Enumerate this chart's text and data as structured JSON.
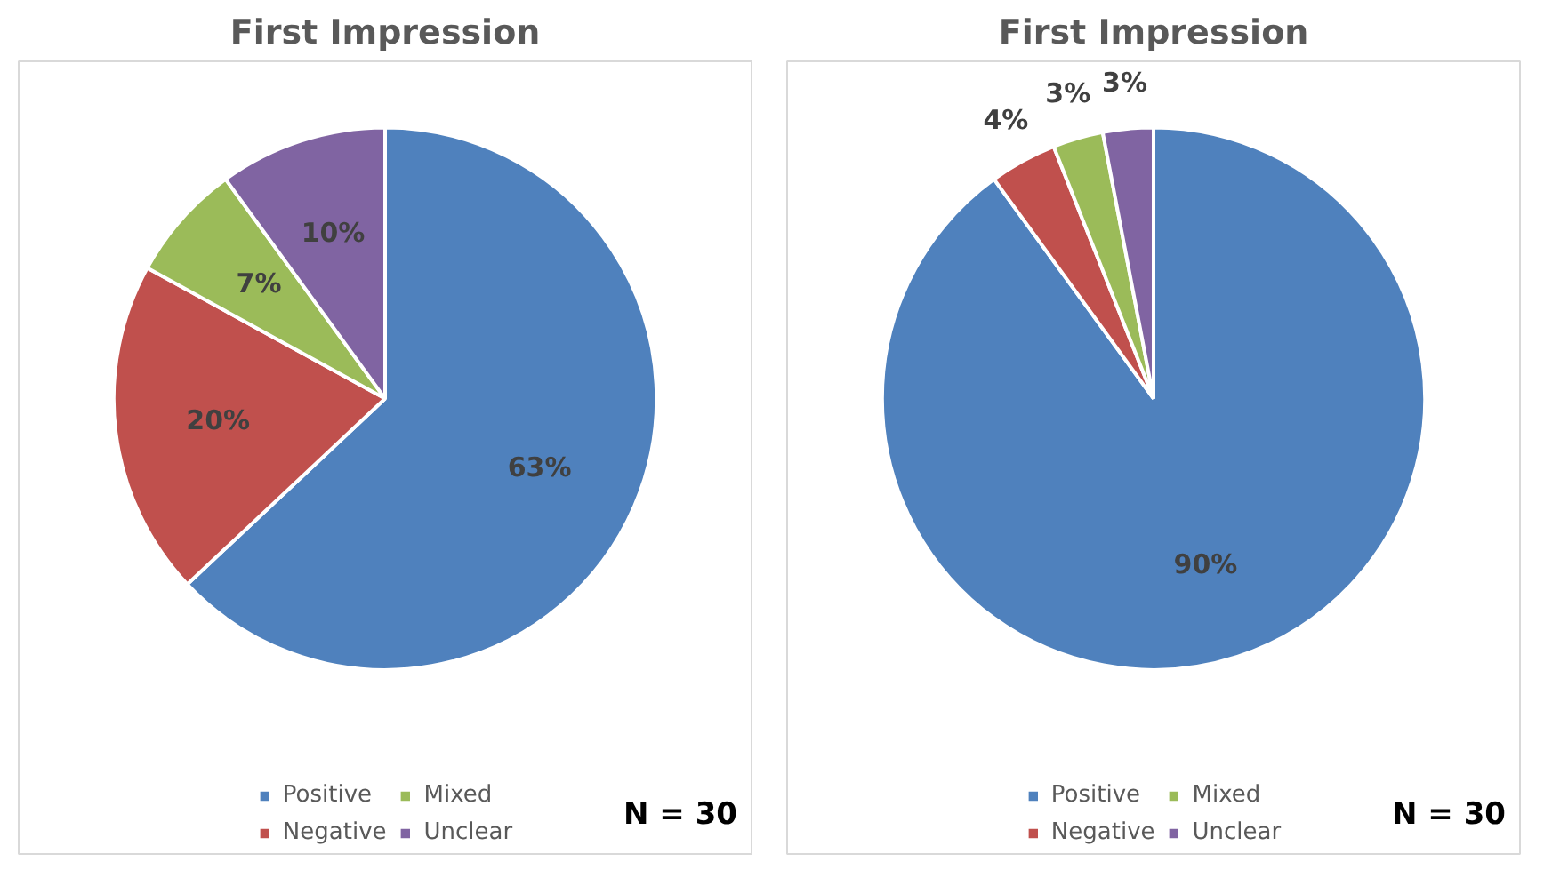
{
  "chart_data": [
    {
      "type": "pie",
      "title": "First Impression",
      "categories": [
        "Positive",
        "Negative",
        "Mixed",
        "Unclear"
      ],
      "values": [
        63,
        20,
        7,
        10
      ],
      "value_labels": [
        "63%",
        "20%",
        "7%",
        "10%"
      ],
      "colors": [
        "#4f81bd",
        "#c0504d",
        "#9bbb59",
        "#8064a2"
      ],
      "legend": "bottom",
      "annotations": [
        "N = 30"
      ]
    },
    {
      "type": "pie",
      "title": "First Impression",
      "categories": [
        "Positive",
        "Negative",
        "Mixed",
        "Unclear"
      ],
      "values": [
        90,
        4,
        3,
        3
      ],
      "value_labels": [
        "90%",
        "4%",
        "3%",
        "3%"
      ],
      "colors": [
        "#4f81bd",
        "#c0504d",
        "#9bbb59",
        "#8064a2"
      ],
      "legend": "bottom",
      "annotations": [
        "N = 30"
      ]
    }
  ]
}
